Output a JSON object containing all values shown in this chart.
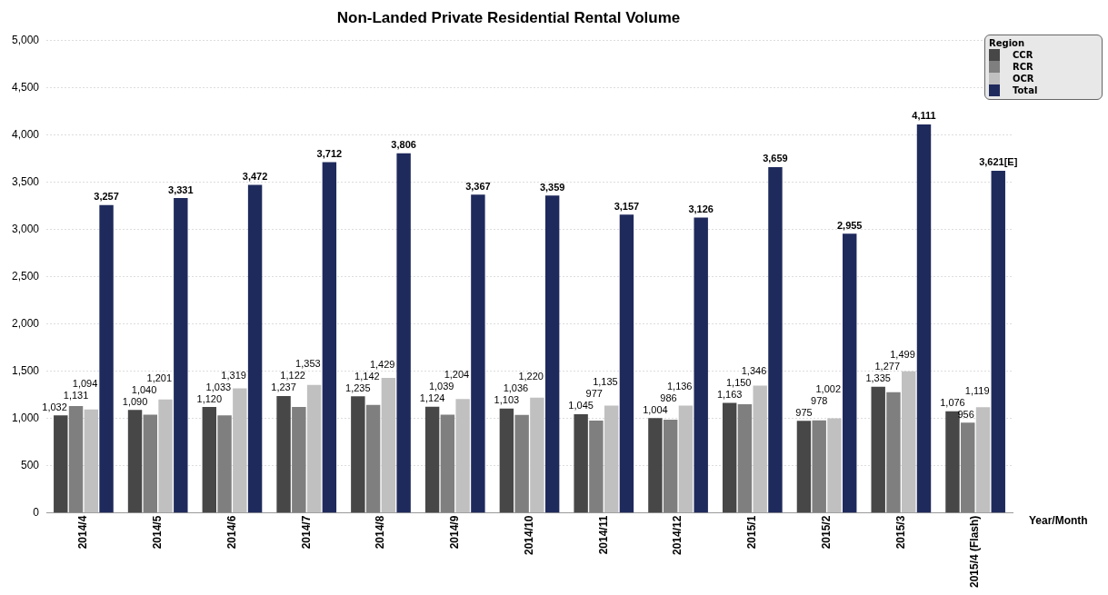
{
  "chart_data": {
    "type": "bar",
    "title": "Non-Landed Private Residential Rental Volume",
    "xlabel": "Year/Month",
    "legend_title": "Region",
    "legend": "top right",
    "grid": "y",
    "categories": [
      "2014/4",
      "2014/5",
      "2014/6",
      "2014/7",
      "2014/8",
      "2014/9",
      "2014/10",
      "2014/11",
      "2014/12",
      "2015/1",
      "2015/2",
      "2015/3",
      "2015/4 (Flash)"
    ],
    "series": [
      {
        "name": "CCR",
        "color": "#474747",
        "values": [
          1032,
          1090,
          1120,
          1237,
          1235,
          1124,
          1103,
          1045,
          1004,
          1163,
          975,
          1335,
          1076
        ],
        "value_labels": [
          "1,032",
          "1,090",
          "1,120",
          "1,237",
          "1,235",
          "1,124",
          "1,103",
          "1,045",
          "1,004",
          "1,163",
          "975",
          "1,335",
          "1,076"
        ]
      },
      {
        "name": "RCR",
        "color": "#7f7f7f",
        "values": [
          1131,
          1040,
          1033,
          1122,
          1142,
          1039,
          1036,
          977,
          986,
          1150,
          978,
          1277,
          956
        ],
        "value_labels": [
          "1,131",
          "1,040",
          "1,033",
          "1,122",
          "1,142",
          "1,039",
          "1,036",
          "977",
          "986",
          "1,150",
          "978",
          "1,277",
          "956"
        ]
      },
      {
        "name": "OCR",
        "color": "#c0c0c0",
        "values": [
          1094,
          1201,
          1319,
          1353,
          1429,
          1204,
          1220,
          1135,
          1136,
          1346,
          1002,
          1499,
          1119
        ],
        "value_labels": [
          "1,094",
          "1,201",
          "1,319",
          "1,353",
          "1,429",
          "1,204",
          "1,220",
          "1,135",
          "1,136",
          "1,346",
          "1,002",
          "1,499",
          "1,119"
        ]
      },
      {
        "name": "Total",
        "color": "#1f2a5c",
        "values": [
          3257,
          3331,
          3472,
          3712,
          3806,
          3367,
          3359,
          3157,
          3126,
          3659,
          2955,
          4111,
          3621
        ],
        "value_labels": [
          "3,257",
          "3,331",
          "3,472",
          "3,712",
          "3,806",
          "3,367",
          "3,359",
          "3,157",
          "3,126",
          "3,659",
          "2,955",
          "4,111",
          "3,621[E]"
        ]
      }
    ],
    "ylim": [
      0,
      5000
    ],
    "yticks": [
      {
        "value": 0,
        "label": "0"
      },
      {
        "value": 500,
        "label": "500"
      },
      {
        "value": 1000,
        "label": "1,000"
      },
      {
        "value": 1500,
        "label": "1,500"
      },
      {
        "value": 2000,
        "label": "2,000"
      },
      {
        "value": 2500,
        "label": "2,500"
      },
      {
        "value": 3000,
        "label": "3,000"
      },
      {
        "value": 3500,
        "label": "3,500"
      },
      {
        "value": 4000,
        "label": "4,000"
      },
      {
        "value": 4500,
        "label": "4,500"
      },
      {
        "value": 5000,
        "label": "5,000"
      }
    ]
  }
}
